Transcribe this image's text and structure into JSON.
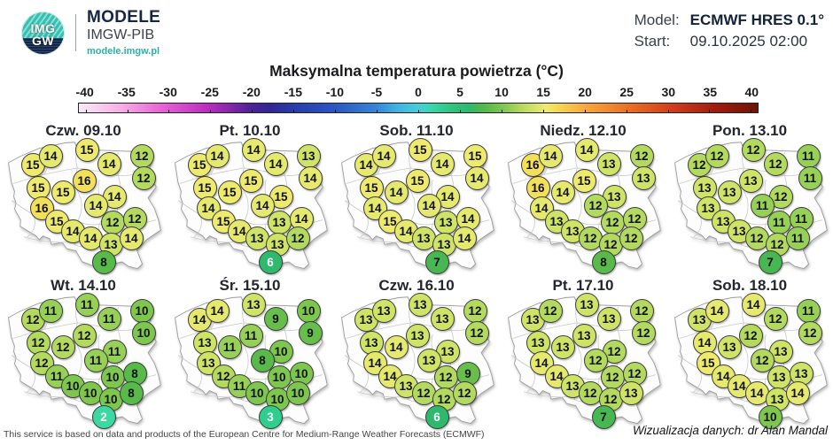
{
  "header": {
    "logo": {
      "line1": "IMG",
      "line2": "GW",
      "brand": "MODELE",
      "sub": "IMGW-PIB",
      "url": "modele.imgw.pl"
    },
    "model_label": "Model:",
    "model_value": "ECMWF HRES 0.1°",
    "start_label": "Start:",
    "start_value": "09.10.2025 02:00"
  },
  "footer": {
    "left": "This service is based on data and products of the European Centre for Medium-Range Weather Forecasts (ECMWF)",
    "right": "Wizualizacja danych: dr Alan Mandal"
  },
  "value_colors": {
    "2": {
      "bg": "#3bd8a2",
      "fg": "#ffffff"
    },
    "3": {
      "bg": "#2fcd8e",
      "fg": "#ffffff"
    },
    "6": {
      "bg": "#2eb96e",
      "fg": "#ffffff"
    },
    "7": {
      "bg": "#46b751",
      "fg": "#111111"
    },
    "8": {
      "bg": "#57ba49",
      "fg": "#111111"
    },
    "9": {
      "bg": "#68be4b",
      "fg": "#111111"
    },
    "10": {
      "bg": "#7ec74f",
      "fg": "#111111"
    },
    "11": {
      "bg": "#97d057",
      "fg": "#111111"
    },
    "12": {
      "bg": "#b3da5e",
      "fg": "#111111"
    },
    "13": {
      "bg": "#cfe366",
      "fg": "#111111"
    },
    "14": {
      "bg": "#e5e96d",
      "fg": "#111111"
    },
    "15": {
      "bg": "#eeea6e",
      "fg": "#111111"
    },
    "16": {
      "bg": "#f2df5a",
      "fg": "#111111"
    }
  },
  "chart_data": {
    "type": "map-grid",
    "title": "Maksymalna temperatura powietrza (°C)",
    "colorbar": {
      "min": -40,
      "max": 40,
      "step": 5,
      "tick_labels": [
        "-40",
        "-35",
        "-30",
        "-25",
        "-20",
        "-15",
        "-10",
        "-5",
        "0",
        "5",
        "10",
        "15",
        "20",
        "25",
        "30",
        "35",
        "40"
      ],
      "gradient": [
        {
          "pos": 0,
          "color": "#fbeaf6"
        },
        {
          "pos": 6.25,
          "color": "#f5aee6"
        },
        {
          "pos": 12.5,
          "color": "#e75fd5"
        },
        {
          "pos": 18.75,
          "color": "#bc2ec1"
        },
        {
          "pos": 21.9,
          "color": "#8c27ae"
        },
        {
          "pos": 25,
          "color": "#53219c"
        },
        {
          "pos": 28.1,
          "color": "#2f2794"
        },
        {
          "pos": 31.25,
          "color": "#283aa8"
        },
        {
          "pos": 37.5,
          "color": "#2b55c4"
        },
        {
          "pos": 43.75,
          "color": "#3684d8"
        },
        {
          "pos": 47,
          "color": "#41b4e2"
        },
        {
          "pos": 50,
          "color": "#44cfd9"
        },
        {
          "pos": 51.9,
          "color": "#3ad6ae"
        },
        {
          "pos": 53.75,
          "color": "#2fcd8e"
        },
        {
          "pos": 55.6,
          "color": "#2fc176"
        },
        {
          "pos": 57.5,
          "color": "#2eb96e"
        },
        {
          "pos": 58.75,
          "color": "#46b751"
        },
        {
          "pos": 60,
          "color": "#57ba49"
        },
        {
          "pos": 62.5,
          "color": "#7ec74f"
        },
        {
          "pos": 65.6,
          "color": "#bcdc60"
        },
        {
          "pos": 68.75,
          "color": "#eeea6e"
        },
        {
          "pos": 70,
          "color": "#f2df5a"
        },
        {
          "pos": 72.5,
          "color": "#f5c149"
        },
        {
          "pos": 75,
          "color": "#f7a43a"
        },
        {
          "pos": 81.25,
          "color": "#ea6d23"
        },
        {
          "pos": 87.5,
          "color": "#d23b1c"
        },
        {
          "pos": 93.75,
          "color": "#a21c0e"
        },
        {
          "pos": 100,
          "color": "#6e1406"
        }
      ]
    },
    "station_positions": [
      [
        37,
        53
      ],
      [
        57,
        43
      ],
      [
        98,
        36
      ],
      [
        123,
        52
      ],
      [
        160,
        43
      ],
      [
        162,
        68
      ],
      [
        95,
        71
      ],
      [
        43,
        79
      ],
      [
        71,
        84
      ],
      [
        129,
        89
      ],
      [
        47,
        102
      ],
      [
        108,
        99
      ],
      [
        64,
        117
      ],
      [
        127,
        118
      ],
      [
        152,
        114
      ],
      [
        82,
        128
      ],
      [
        102,
        136
      ],
      [
        125,
        143
      ],
      [
        148,
        136
      ],
      [
        117,
        163
      ]
    ],
    "days": [
      {
        "label": "Czw. 09.10",
        "temps": [
          15,
          14,
          15,
          14,
          12,
          12,
          16,
          15,
          15,
          14,
          16,
          14,
          15,
          12,
          12,
          14,
          14,
          13,
          14,
          8
        ]
      },
      {
        "label": "Pt. 10.10",
        "temps": [
          15,
          14,
          14,
          14,
          13,
          14,
          15,
          15,
          15,
          15,
          14,
          14,
          15,
          13,
          14,
          14,
          13,
          13,
          12,
          6
        ]
      },
      {
        "label": "Sob. 11.10",
        "temps": [
          14,
          14,
          15,
          14,
          15,
          14,
          15,
          15,
          14,
          14,
          14,
          14,
          15,
          13,
          14,
          14,
          13,
          13,
          14,
          7
        ]
      },
      {
        "label": "Niedz. 12.10",
        "temps": [
          16,
          14,
          14,
          13,
          12,
          13,
          15,
          16,
          14,
          13,
          14,
          12,
          13,
          12,
          12,
          13,
          12,
          12,
          12,
          8
        ]
      },
      {
        "label": "Pon. 13.10",
        "temps": [
          12,
          12,
          12,
          12,
          11,
          11,
          13,
          13,
          13,
          12,
          13,
          11,
          13,
          11,
          11,
          13,
          12,
          12,
          11,
          7
        ]
      },
      {
        "label": "Wt. 14.10",
        "temps": [
          12,
          11,
          11,
          11,
          10,
          10,
          12,
          12,
          12,
          11,
          12,
          11,
          11,
          10,
          8,
          10,
          10,
          10,
          8,
          2
        ]
      },
      {
        "label": "Śr. 15.10",
        "temps": [
          14,
          14,
          13,
          9,
          10,
          9,
          11,
          13,
          11,
          10,
          13,
          8,
          12,
          10,
          10,
          11,
          10,
          10,
          10,
          3
        ]
      },
      {
        "label": "Czw. 16.10",
        "temps": [
          13,
          13,
          13,
          13,
          12,
          12,
          13,
          13,
          14,
          13,
          14,
          13,
          14,
          12,
          9,
          13,
          12,
          12,
          12,
          6
        ]
      },
      {
        "label": "Pt. 17.10",
        "temps": [
          13,
          12,
          13,
          13,
          12,
          12,
          13,
          13,
          13,
          12,
          14,
          12,
          14,
          12,
          12,
          13,
          12,
          12,
          13,
          7
        ]
      },
      {
        "label": "Sob. 18.10",
        "temps": [
          13,
          14,
          14,
          12,
          11,
          12,
          12,
          14,
          13,
          13,
          15,
          12,
          14,
          13,
          13,
          14,
          14,
          13,
          14,
          10
        ]
      }
    ]
  }
}
